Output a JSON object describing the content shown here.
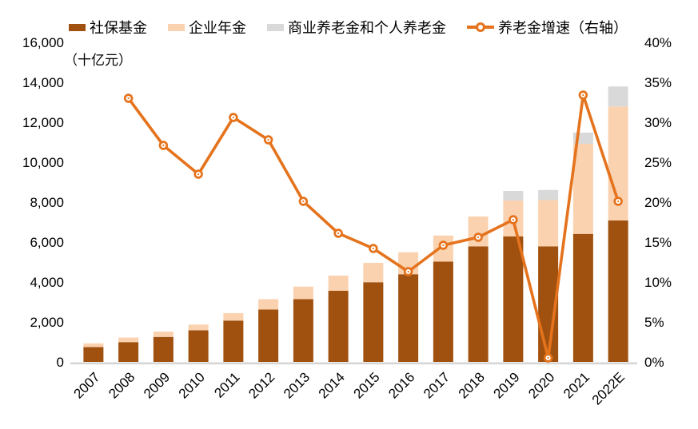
{
  "canvas": {
    "background": "#FFFFFF"
  },
  "legend": {
    "position": "top",
    "items": [
      {
        "label": "社保基金",
        "type": "square",
        "color": "#A0510F"
      },
      {
        "label": "企业年金",
        "type": "square",
        "color": "#FAD2B0"
      },
      {
        "label": "商业养老金和个人养老金",
        "type": "square",
        "color": "#D9D9D9"
      },
      {
        "label": "养老金增速（右轴）",
        "type": "line-marker",
        "color": "#E5731D"
      }
    ]
  },
  "chart_data": {
    "type": "bar",
    "subtype": "stacked-bar-with-line",
    "title": "",
    "unit_label": "（十亿元）",
    "grid": false,
    "legend_position": "top",
    "categories": [
      "2007",
      "2008",
      "2009",
      "2010",
      "2011",
      "2012",
      "2013",
      "2014",
      "2015",
      "2016",
      "2017",
      "2018",
      "2019",
      "2020",
      "2021",
      "2022E"
    ],
    "bar_series": [
      {
        "name": "社保基金",
        "color": "#A0510F",
        "values": [
          740,
          990,
          1250,
          1580,
          2070,
          2620,
          3140,
          3560,
          3990,
          4390,
          5020,
          5780,
          6280,
          5780,
          6410,
          7080
        ]
      },
      {
        "name": "企业年金",
        "color": "#FAD2B0",
        "values": [
          190,
          230,
          270,
          290,
          370,
          520,
          630,
          760,
          970,
          1100,
          1310,
          1500,
          1800,
          2330,
          4510,
          5710
        ]
      },
      {
        "name": "商业养老金和个人养老金",
        "color": "#D9D9D9",
        "values": [
          0,
          0,
          0,
          0,
          0,
          0,
          0,
          0,
          0,
          0,
          0,
          0,
          480,
          500,
          560,
          1000
        ]
      }
    ],
    "line_series": {
      "name": "养老金增速（右轴）",
      "axis": "right",
      "color": "#E5731D",
      "marker": "circle-donut",
      "values_pct": [
        null,
        33.0,
        27.1,
        23.5,
        30.6,
        27.8,
        20.1,
        16.1,
        14.2,
        11.3,
        14.6,
        15.6,
        17.8,
        0.5,
        33.4,
        20.1
      ]
    },
    "left_axis": {
      "min": 0,
      "max": 16000,
      "step": 2000,
      "tick_labels": [
        "0",
        "2,000",
        "4,000",
        "6,000",
        "8,000",
        "10,000",
        "12,000",
        "14,000",
        "16,000"
      ]
    },
    "right_axis": {
      "min": 0,
      "max": 40,
      "step": 5,
      "tick_labels": [
        "0%",
        "5%",
        "10%",
        "15%",
        "20%",
        "25%",
        "30%",
        "35%",
        "40%"
      ]
    },
    "axis_line_color": "#D6D6D6",
    "text_color": "#000000"
  }
}
